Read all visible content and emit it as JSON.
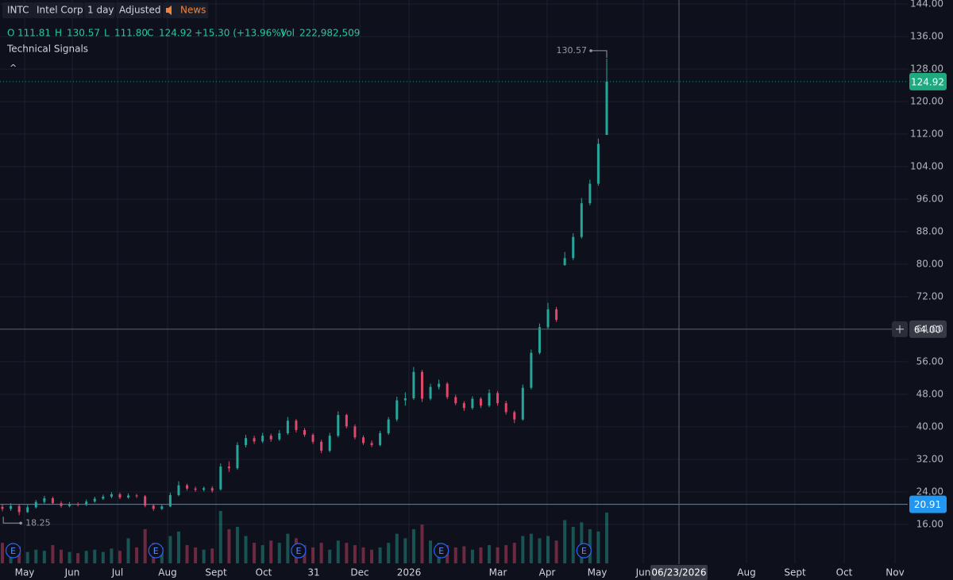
{
  "header": {
    "symbol": "INTC",
    "name": "Intel Corp",
    "interval": "1 day",
    "adjustment": "Adjusted",
    "news": "News"
  },
  "legend": {
    "open_label": "O",
    "open": "111.81",
    "high_label": "H",
    "high": "130.57",
    "low_label": "L",
    "low": "111.80",
    "close_label": "C",
    "close": "124.92",
    "change": "+15.30 (+13.96%)",
    "volume_label": "Vol",
    "volume": "222,982,509"
  },
  "indicators": {
    "title": "Technical Signals",
    "toggle": "^"
  },
  "chart_data": {
    "type": "candlestick",
    "open": [
      20.3,
      19.8,
      20.5,
      19.0,
      20.2,
      21.5,
      22.4,
      21.2,
      20.5,
      21.0,
      20.8,
      21.6,
      22.3,
      22.8,
      23.4,
      22.6,
      23.1,
      22.9,
      20.6,
      19.8,
      20.4,
      23.2,
      25.6,
      24.8,
      24.5,
      24.9,
      24.6,
      30.2,
      29.8,
      35.5,
      37.2,
      36.4,
      37.8,
      36.9,
      38.4,
      41.5,
      39.2,
      38.0,
      36.3,
      34.1,
      37.8,
      42.9,
      40.1,
      37.4,
      36.0,
      35.5,
      38.4,
      41.8,
      46.5,
      47.0,
      53.5,
      46.9,
      49.8,
      50.6,
      47.3,
      45.8,
      44.6,
      46.9,
      45.2,
      48.3,
      45.8,
      43.6,
      41.8,
      49.6,
      58.2,
      64.5,
      68.9,
      79.8,
      81.5,
      86.7,
      95.0,
      99.8,
      111.81
    ],
    "high": [
      21.0,
      21.2,
      21.0,
      20.8,
      22.0,
      23.0,
      22.8,
      21.7,
      21.5,
      21.4,
      22.1,
      22.8,
      23.3,
      23.9,
      23.8,
      23.6,
      23.5,
      23.2,
      21.0,
      20.9,
      23.8,
      26.6,
      26.0,
      25.3,
      25.3,
      25.4,
      31.0,
      31.5,
      36.2,
      38.0,
      37.8,
      38.5,
      38.3,
      39.2,
      42.4,
      41.9,
      39.7,
      38.4,
      36.8,
      38.5,
      43.8,
      43.2,
      40.6,
      37.9,
      36.6,
      39.0,
      42.4,
      47.4,
      48.5,
      54.7,
      54.0,
      50.6,
      51.6,
      51.0,
      47.9,
      46.3,
      47.5,
      47.3,
      49.2,
      48.8,
      46.4,
      44.0,
      50.4,
      59.0,
      65.4,
      70.5,
      69.5,
      83.0,
      87.6,
      96.3,
      100.8,
      110.9,
      130.57
    ],
    "low": [
      19.2,
      19.3,
      18.25,
      18.8,
      19.9,
      21.1,
      20.9,
      20.1,
      20.2,
      20.4,
      20.5,
      21.3,
      22.0,
      22.4,
      22.2,
      22.3,
      22.5,
      20.2,
      19.3,
      19.5,
      20.2,
      22.9,
      24.3,
      24.0,
      24.1,
      23.8,
      24.3,
      28.9,
      29.4,
      34.9,
      35.8,
      36.0,
      36.3,
      36.5,
      38.0,
      38.6,
      37.5,
      35.8,
      33.5,
      33.7,
      37.4,
      39.6,
      36.9,
      35.5,
      35.0,
      35.2,
      38.0,
      41.3,
      45.2,
      46.6,
      46.1,
      46.5,
      49.2,
      46.8,
      45.3,
      43.9,
      44.2,
      44.6,
      44.8,
      45.2,
      43.0,
      40.9,
      41.5,
      49.2,
      57.8,
      64.1,
      65.8,
      79.6,
      81.0,
      86.3,
      94.5,
      99.3,
      111.8
    ],
    "close": [
      19.8,
      20.5,
      19.0,
      20.2,
      21.5,
      22.4,
      21.2,
      20.5,
      21.0,
      20.8,
      21.6,
      22.3,
      22.8,
      23.4,
      22.6,
      23.1,
      22.9,
      20.6,
      19.8,
      20.4,
      23.2,
      25.6,
      24.8,
      24.5,
      24.9,
      24.3,
      30.2,
      29.8,
      35.5,
      37.2,
      36.4,
      37.8,
      36.9,
      38.4,
      41.5,
      39.2,
      38.0,
      36.3,
      34.1,
      37.8,
      42.9,
      40.1,
      37.4,
      36.0,
      35.5,
      38.4,
      41.8,
      46.5,
      47.0,
      53.5,
      46.9,
      49.8,
      50.6,
      47.3,
      45.8,
      44.6,
      46.9,
      45.2,
      48.3,
      45.8,
      43.6,
      41.8,
      49.6,
      58.2,
      64.5,
      68.9,
      66.3,
      81.5,
      86.7,
      95.0,
      99.8,
      109.62,
      124.92
    ],
    "volume": [
      90000000.0,
      60000000.0,
      75000000.0,
      50000000.0,
      60000000.0,
      55000000.0,
      80000000.0,
      60000000.0,
      50000000.0,
      45000000.0,
      55000000.0,
      60000000.0,
      50000000.0,
      65000000.0,
      55000000.0,
      110000000.0,
      70000000.0,
      150000000.0,
      90000000.0,
      70000000.0,
      120000000.0,
      140000000.0,
      80000000.0,
      70000000.0,
      60000000.0,
      65000000.0,
      230000000.0,
      150000000.0,
      160000000.0,
      120000000.0,
      90000000.0,
      80000000.0,
      100000000.0,
      90000000.0,
      130000000.0,
      110000000.0,
      80000000.0,
      70000000.0,
      90000000.0,
      60000000.0,
      100000000.0,
      90000000.0,
      80000000.0,
      70000000.0,
      60000000.0,
      70000000.0,
      90000000.0,
      130000000.0,
      110000000.0,
      150000000.0,
      170000000.0,
      100000000.0,
      90000000.0,
      80000000.0,
      70000000.0,
      75000000.0,
      60000000.0,
      70000000.0,
      80000000.0,
      70000000.0,
      80000000.0,
      90000000.0,
      120000000.0,
      130000000.0,
      110000000.0,
      120000000.0,
      100000000.0,
      190000000.0,
      160000000.0,
      180000000.0,
      150000000.0,
      140000000.0,
      222982509
    ],
    "up_color": "#26a69a",
    "down_color": "#e0476c",
    "ylim": [
      6.4,
      145
    ],
    "yticks": [
      {
        "value": 144,
        "label": "144.00"
      },
      {
        "value": 136,
        "label": "136.00"
      },
      {
        "value": 128,
        "label": "128.00"
      },
      {
        "value": 120,
        "label": "120.00"
      },
      {
        "value": 112,
        "label": "112.00"
      },
      {
        "value": 104,
        "label": "104.00"
      },
      {
        "value": 96,
        "label": "96.00"
      },
      {
        "value": 88,
        "label": "88.00"
      },
      {
        "value": 80,
        "label": "80.00"
      },
      {
        "value": 72,
        "label": "72.00"
      },
      {
        "value": 64,
        "label": "64.00"
      },
      {
        "value": 56,
        "label": "56.00"
      },
      {
        "value": 48,
        "label": "48.00"
      },
      {
        "value": 40,
        "label": "40.00"
      },
      {
        "value": 32,
        "label": "32.00"
      },
      {
        "value": 24,
        "label": "24.00"
      },
      {
        "value": 16,
        "label": "16.00"
      }
    ],
    "x_labels": [
      "May",
      "Jun",
      "Jul",
      "Aug",
      "Sept",
      "Oct",
      "31",
      "Dec",
      "2026",
      "Mar",
      "Apr",
      "May",
      "Jun",
      "Aug",
      "Sept",
      "Oct",
      "Nov"
    ],
    "grid": true,
    "high_marker": {
      "value": 130.57,
      "label": "130.57"
    },
    "low_marker": {
      "value": 18.25,
      "label": "18.25"
    },
    "last_price": {
      "value": 124.92,
      "label": "124.92"
    },
    "crosshair": {
      "value": 64,
      "label": "64.00",
      "date": "06/23/2026"
    },
    "price_line": {
      "value": 20.91,
      "label": "20.91"
    },
    "earnings": [
      "E",
      "E",
      "E",
      "E",
      "E"
    ]
  }
}
